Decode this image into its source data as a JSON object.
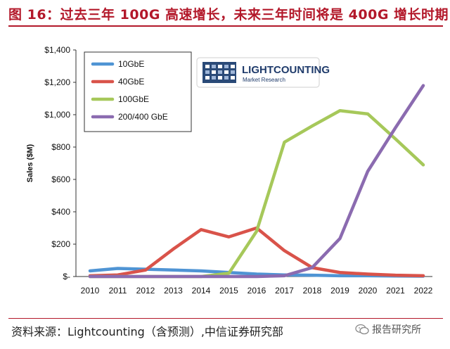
{
  "figure": {
    "title": "图 16：过去三年 100G 高速增长，未来三年时间将是 400G 增长时期",
    "source": "资料来源：Lightcounting（含预测）,中信证券研究部",
    "watermark": "报告研究所"
  },
  "logo": {
    "name": "LIGHTCOUNTING",
    "subtitle": "Market Research"
  },
  "colors": {
    "accent": "#b3182a",
    "10GbE": "#4f94d4",
    "40GbE": "#d9534a",
    "100GbE": "#a6c85a",
    "200_400GbE": "#8b6bb0"
  },
  "chart_data": {
    "type": "line",
    "title": "",
    "xlabel": "",
    "ylabel": "Sales ($M)",
    "x": [
      2010,
      2011,
      2012,
      2013,
      2014,
      2015,
      2016,
      2017,
      2018,
      2019,
      2020,
      2021,
      2022
    ],
    "ylim": [
      0,
      1400
    ],
    "yticks": [
      "$-",
      "$200",
      "$400",
      "$600",
      "$800",
      "$1,000",
      "$1,200",
      "$1,400"
    ],
    "ytick_values": [
      0,
      200,
      400,
      600,
      800,
      1000,
      1200,
      1400
    ],
    "grid": false,
    "legend_position": "top-left",
    "series": [
      {
        "name": "10GbE",
        "color": "#4f94d4",
        "values": [
          35,
          50,
          45,
          40,
          35,
          25,
          15,
          10,
          8,
          5,
          5,
          3,
          2
        ]
      },
      {
        "name": "40GbE",
        "color": "#d9534a",
        "values": [
          5,
          10,
          40,
          170,
          290,
          245,
          300,
          160,
          55,
          25,
          15,
          8,
          5
        ]
      },
      {
        "name": "100GbE",
        "color": "#a6c85a",
        "values": [
          0,
          0,
          0,
          0,
          0,
          20,
          280,
          830,
          930,
          1025,
          1005,
          850,
          690
        ]
      },
      {
        "name": "200/400 GbE",
        "color": "#8b6bb0",
        "values": [
          0,
          0,
          0,
          0,
          0,
          0,
          0,
          5,
          55,
          235,
          650,
          920,
          1180
        ]
      }
    ]
  }
}
